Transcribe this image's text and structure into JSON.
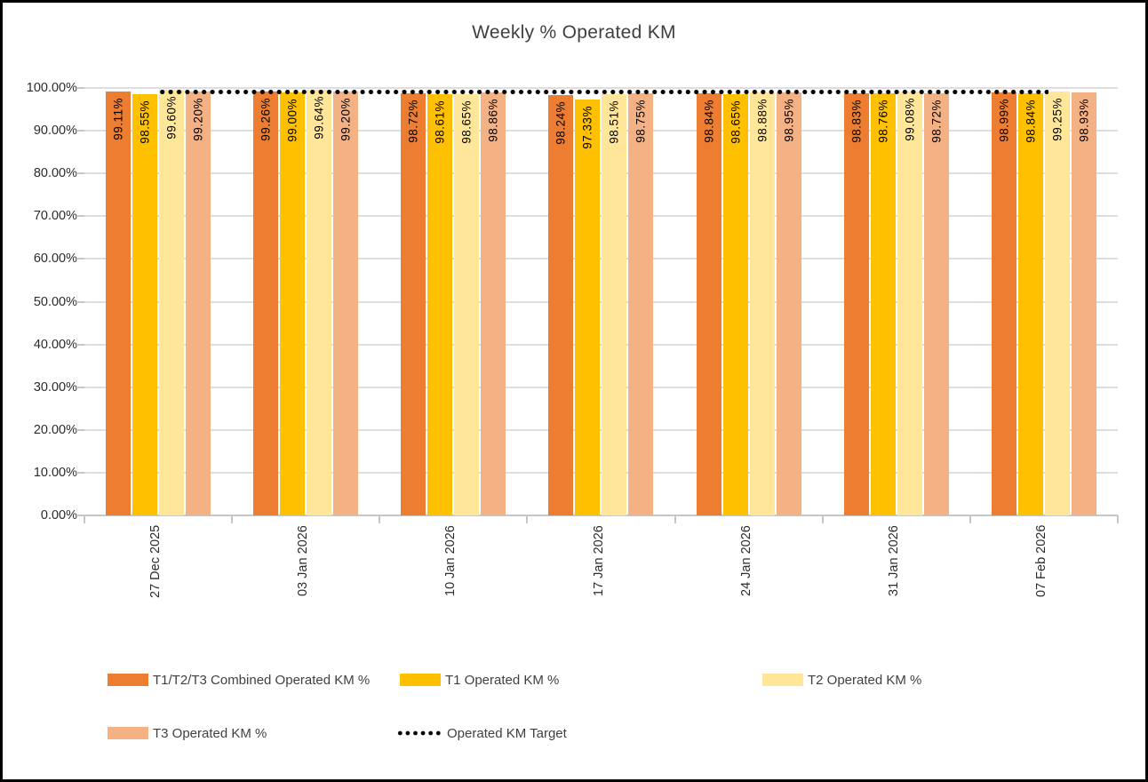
{
  "chart_data": {
    "type": "bar",
    "title": "Weekly % Operated KM",
    "categories": [
      "27 Dec 2025",
      "03 Jan 2026",
      "10 Jan 2026",
      "17 Jan 2026",
      "24 Jan 2026",
      "31 Jan 2026",
      "07 Feb 2026"
    ],
    "series": [
      {
        "name": "T1/T2/T3 Combined Operated KM %",
        "color": "#ED7D31",
        "values": [
          99.11,
          99.26,
          98.72,
          98.24,
          98.84,
          98.83,
          98.99
        ]
      },
      {
        "name": "T1 Operated KM %",
        "color": "#FFC000",
        "values": [
          98.55,
          99.0,
          98.61,
          97.33,
          98.65,
          98.76,
          98.84
        ]
      },
      {
        "name": "T2 Operated KM %",
        "color": "#FFE699",
        "values": [
          99.6,
          99.64,
          98.65,
          98.51,
          98.88,
          99.08,
          99.25
        ]
      },
      {
        "name": "T3 Operated KM %",
        "color": "#F4B183",
        "values": [
          99.2,
          99.2,
          98.86,
          98.75,
          98.95,
          98.72,
          98.93
        ]
      }
    ],
    "target_line": {
      "name": "Operated KM Target",
      "value": 99.0,
      "color": "#000000",
      "style": "dotted"
    },
    "y_axis": {
      "min": 0,
      "max": 100,
      "step": 10,
      "tick_labels": [
        "100.00%",
        "90.00%",
        "80.00%",
        "70.00%",
        "60.00%",
        "50.00%",
        "40.00%",
        "30.00%",
        "20.00%",
        "10.00%",
        "0.00%"
      ]
    },
    "data_label_format": "0.00%",
    "grid": true,
    "legend_position": "bottom"
  }
}
